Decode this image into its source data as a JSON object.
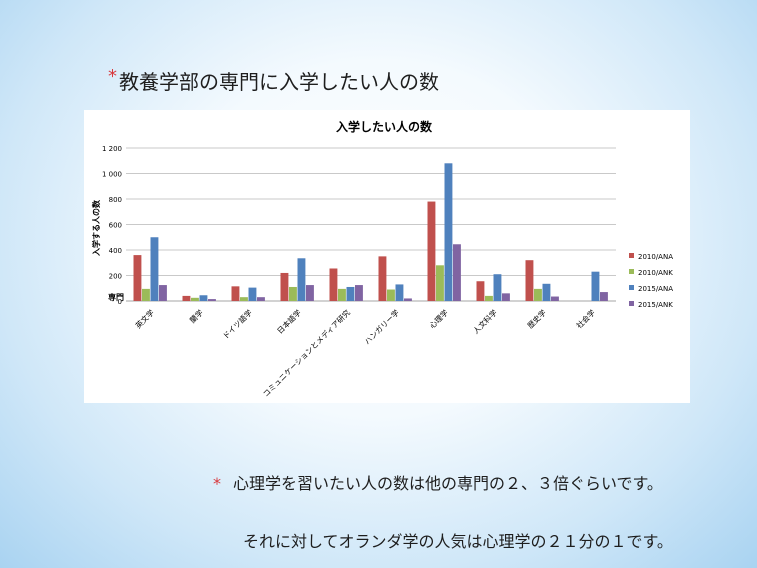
{
  "slide": {
    "title_mark": "*",
    "title": "教養学部の専門に入学したい人の数",
    "bullet_mark": "*",
    "bullet1": "心理学を習いたい人の数は他の専門の２、３倍ぐらいです。",
    "bullet2": "それに対してオランダ学の人気は心理学の２１分の１です。"
  },
  "chart_data": {
    "type": "bar",
    "title": "入学したい人の数",
    "ylabel": "入学する人の数",
    "xlabel": "専門",
    "ylim": [
      0,
      1200
    ],
    "yticks": [
      0,
      200,
      400,
      600,
      800,
      1000,
      1200
    ],
    "ytick_labels": [
      "0",
      "200",
      "400",
      "600",
      "800",
      "1 000",
      "1 200"
    ],
    "grid": true,
    "legend_position": "right",
    "categories": [
      "英文学",
      "蘭学",
      "ドイツ語学",
      "日本語学",
      "コミュニケーションとメディア研究",
      "ハンガリー学",
      "心理学",
      "人文科学",
      "歴史学",
      "社会学"
    ],
    "series": [
      {
        "name": "2010/ANA",
        "color": "#c0504d",
        "values": [
          360,
          40,
          115,
          220,
          255,
          350,
          780,
          155,
          320,
          0
        ]
      },
      {
        "name": "2010/ANK",
        "color": "#9bbb59",
        "values": [
          95,
          25,
          30,
          110,
          95,
          90,
          280,
          40,
          95,
          0
        ]
      },
      {
        "name": "2015/ANA",
        "color": "#4f81bd",
        "values": [
          500,
          45,
          105,
          335,
          110,
          130,
          1080,
          210,
          135,
          230
        ]
      },
      {
        "name": "2015/ANK",
        "color": "#8064a2",
        "values": [
          125,
          15,
          30,
          125,
          125,
          20,
          445,
          60,
          35,
          70
        ]
      }
    ]
  }
}
